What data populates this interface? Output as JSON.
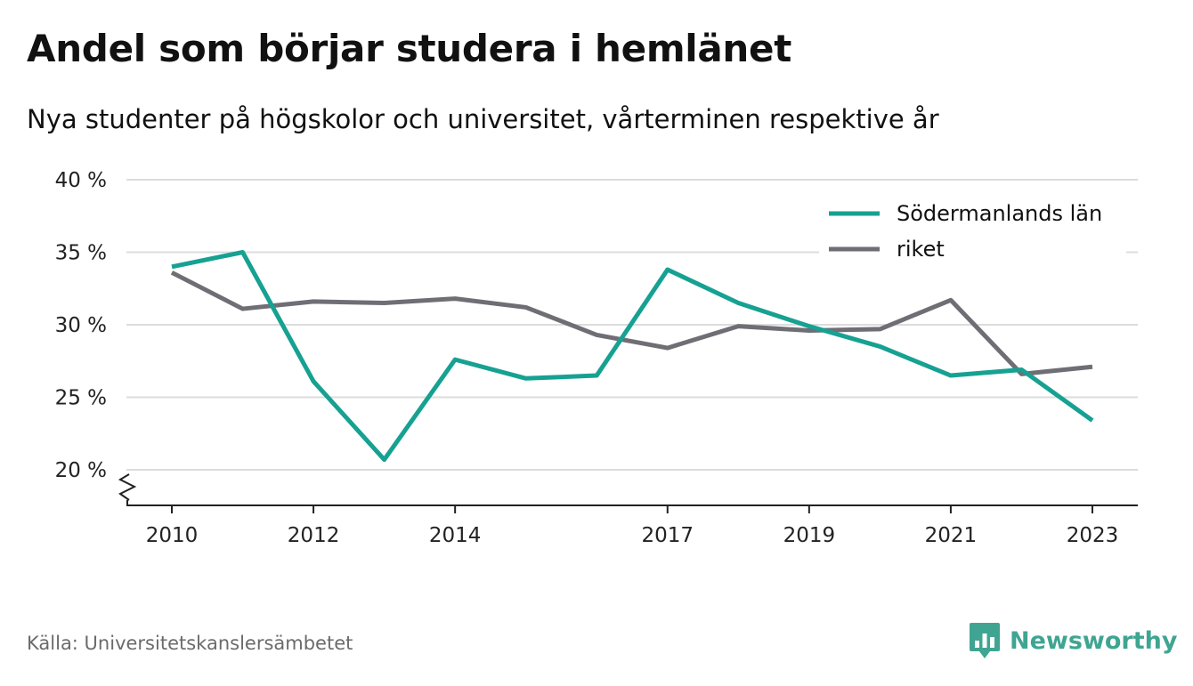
{
  "title": "Andel som börjar studera i hemlänet",
  "subtitle": "Nya studenter på högskolor och universitet, vårterminen respektive år",
  "source": "Källa: Universitetskanslersämbetet",
  "brand": {
    "name": "Newsworthy",
    "icon": "newsworthy-logo-icon",
    "color": "#3fa592"
  },
  "chart_data": {
    "type": "line",
    "title": "Andel som börjar studera i hemlänet",
    "subtitle": "Nya studenter på högskolor och universitet, vårterminen respektive år",
    "xlabel": "",
    "ylabel": "",
    "x": [
      2010,
      2011,
      2012,
      2013,
      2014,
      2015,
      2016,
      2017,
      2018,
      2019,
      2020,
      2021,
      2022,
      2023
    ],
    "x_ticks": [
      "2010",
      "2012",
      "2014",
      "2017",
      "2019",
      "2021",
      "2023"
    ],
    "y_ticks": [
      "20 %",
      "25 %",
      "30 %",
      "35 %",
      "40 %"
    ],
    "ylim": [
      20,
      40
    ],
    "y_axis_break": true,
    "grid": "horizontal",
    "legend_position": "top-right",
    "series": [
      {
        "name": "Södermanlands län",
        "color": "#16a192",
        "values": [
          34.0,
          35.0,
          26.1,
          20.7,
          27.6,
          26.3,
          26.5,
          33.8,
          31.5,
          29.9,
          28.5,
          26.5,
          26.9,
          23.4
        ]
      },
      {
        "name": "riket",
        "color": "#706e75",
        "values": [
          33.6,
          31.1,
          31.6,
          31.5,
          31.8,
          31.2,
          29.3,
          28.4,
          29.9,
          29.6,
          29.7,
          31.7,
          26.6,
          27.1
        ]
      }
    ]
  }
}
